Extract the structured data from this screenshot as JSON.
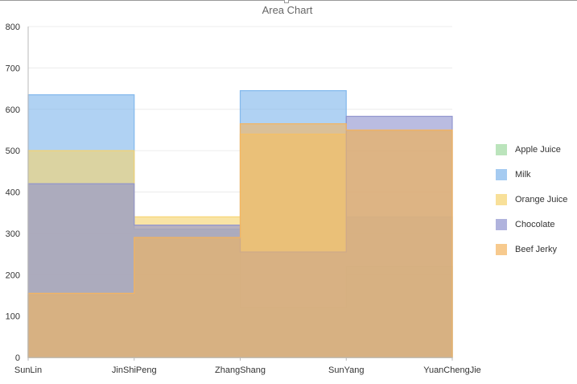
{
  "chart_data": {
    "type": "area",
    "title": "Area Chart",
    "categories": [
      "SunLin",
      "JinShiPeng",
      "ZhangShang",
      "SunYang",
      "YuanChengJie"
    ],
    "ylim": [
      0,
      800
    ],
    "yticks": [
      0,
      100,
      200,
      300,
      400,
      500,
      600,
      700,
      800
    ],
    "grid": true,
    "legend_position": "right",
    "step": true,
    "series": [
      {
        "name": "Apple Juice",
        "values": [
          150,
          290,
          120,
          220,
          220
        ],
        "color": "#9fd9a0"
      },
      {
        "name": "Milk",
        "values": [
          635,
          310,
          645,
          340,
          340
        ],
        "color": "#7fb6ec"
      },
      {
        "name": "Orange Juice",
        "values": [
          500,
          340,
          540,
          548,
          548
        ],
        "color": "#f6d36e"
      },
      {
        "name": "Chocolate",
        "values": [
          420,
          320,
          255,
          583,
          583
        ],
        "color": "#8f93cf"
      },
      {
        "name": "Beef Jerky",
        "values": [
          155,
          290,
          565,
          550,
          550
        ],
        "color": "#f4b45f"
      }
    ]
  }
}
